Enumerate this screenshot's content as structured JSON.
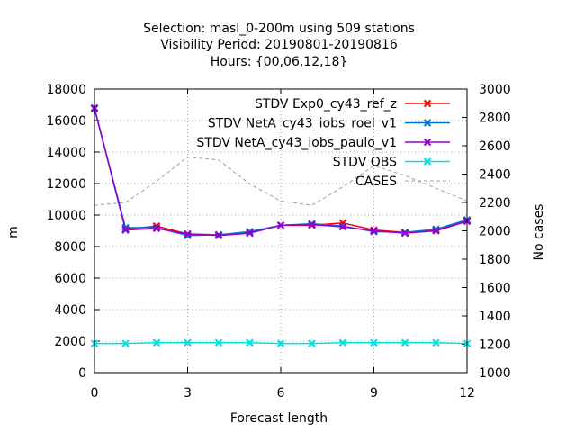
{
  "chart_data": {
    "type": "line",
    "title_lines": [
      "Selection: masl_0-200m using   509 stations",
      "Visibility   Period: 20190801-20190816",
      "Hours: {00,06,12,18}"
    ],
    "xlabel": "Forecast length",
    "ylabel": "m",
    "y2label": "No cases",
    "xlim": [
      0,
      12
    ],
    "ylim": [
      0,
      18000
    ],
    "y2lim": [
      1000,
      3000
    ],
    "xticks": [
      "0",
      "3",
      "6",
      "9",
      "12"
    ],
    "yticks": [
      "0",
      "2000",
      "4000",
      "6000",
      "8000",
      "10000",
      "12000",
      "14000",
      "16000",
      "18000"
    ],
    "y2ticks": [
      "1000",
      "1200",
      "1400",
      "1600",
      "1800",
      "2000",
      "2200",
      "2400",
      "2600",
      "2800",
      "3000"
    ],
    "grid": true,
    "legend_position": "top-right",
    "x": [
      0,
      1,
      2,
      3,
      4,
      5,
      6,
      7,
      8,
      9,
      10,
      11,
      12
    ],
    "series": [
      {
        "name": "STDV Exp0_cy43_ref_z",
        "color": "#ff0000",
        "axis": "y",
        "marker": "x",
        "values": [
          16800,
          9100,
          9300,
          8800,
          8750,
          8900,
          9350,
          9350,
          9500,
          9050,
          8900,
          9050,
          9650
        ]
      },
      {
        "name": "STDV NetA_cy43_iobs_roel_v1",
        "color": "#0072d4",
        "axis": "y",
        "marker": "x",
        "values": [
          16750,
          9200,
          9200,
          8700,
          8750,
          8950,
          9350,
          9450,
          9300,
          8950,
          8900,
          9100,
          9700
        ]
      },
      {
        "name": "STDV NetA_cy43_iobs_paulo_v1",
        "color": "#9400d3",
        "axis": "y",
        "marker": "x",
        "values": [
          16800,
          9050,
          9150,
          8800,
          8700,
          8850,
          9350,
          9400,
          9250,
          9000,
          8850,
          9000,
          9600
        ]
      },
      {
        "name": "STDV OBS",
        "color": "#00e0e0",
        "axis": "y",
        "marker": "x",
        "values": [
          1850,
          1850,
          1900,
          1900,
          1900,
          1900,
          1850,
          1850,
          1900,
          1900,
          1900,
          1900,
          1850
        ]
      },
      {
        "name": "CASES",
        "color": "#a0a0a0",
        "axis": "y2",
        "marker": "none",
        "dash": true,
        "values": [
          2180,
          2200,
          2350,
          2520,
          2500,
          2330,
          2210,
          2180,
          2310,
          2460,
          2390,
          2300,
          2210
        ]
      }
    ]
  }
}
